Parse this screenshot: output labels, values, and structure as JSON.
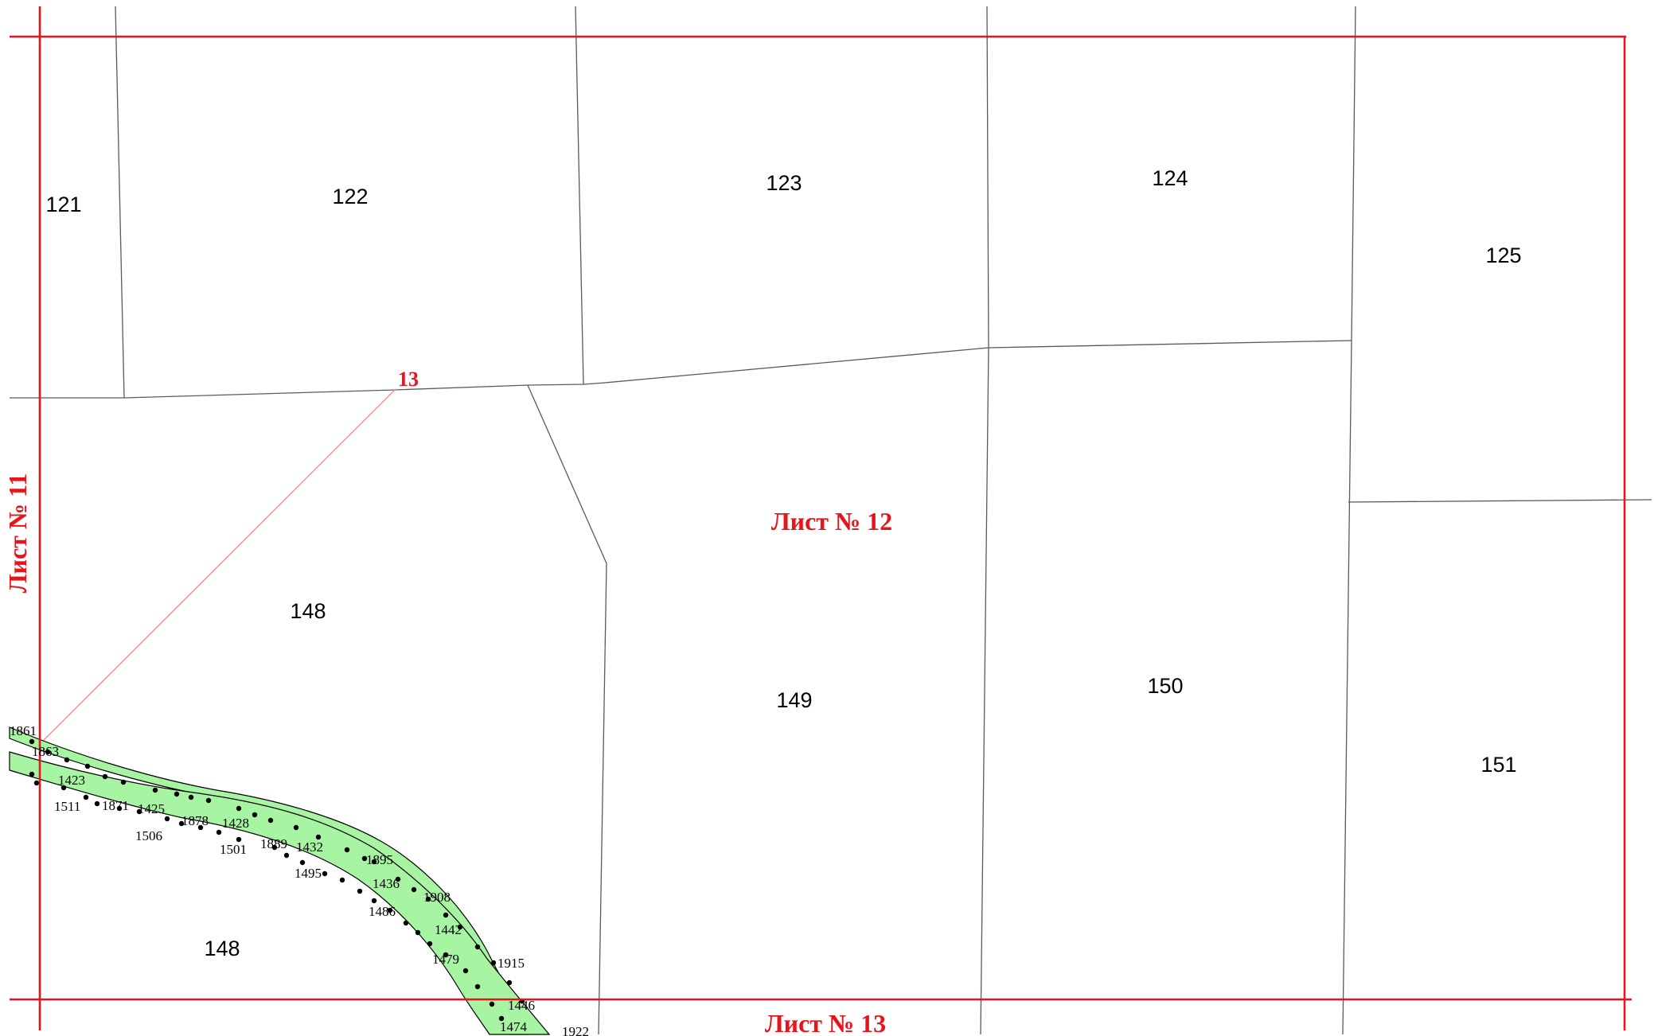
{
  "colors": {
    "sheet_frame": "#e8141c",
    "sheet_label": "#e8141c",
    "road_fill": "#a7f5a2",
    "boundary": "#5a5a5a",
    "vertex": "#000000",
    "leader_line": "#f08a7c"
  },
  "sheet": {
    "current": "Лист № 12",
    "left_neighbor": "Лист № 11",
    "bottom_neighbor": "Лист № 13"
  },
  "marker_label": "13",
  "parcels": [
    {
      "id": "p121",
      "number": "121"
    },
    {
      "id": "p122",
      "number": "122"
    },
    {
      "id": "p123",
      "number": "123"
    },
    {
      "id": "p124",
      "number": "124"
    },
    {
      "id": "p125",
      "number": "125"
    },
    {
      "id": "p148a",
      "number": "148"
    },
    {
      "id": "p149",
      "number": "149"
    },
    {
      "id": "p150",
      "number": "150"
    },
    {
      "id": "p148b",
      "number": "148"
    },
    {
      "id": "p151",
      "number": "151"
    }
  ],
  "point_numbers": [
    "1861",
    "1863",
    "1423",
    "1511",
    "1871",
    "1425",
    "1506",
    "1878",
    "1428",
    "1501",
    "1889",
    "1432",
    "1495",
    "1895",
    "1436",
    "1908",
    "1486",
    "1442",
    "1479",
    "1915",
    "1446",
    "1474",
    "1922"
  ]
}
